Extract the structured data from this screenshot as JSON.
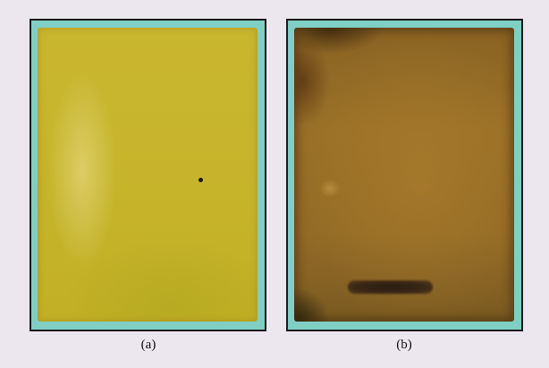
{
  "figure": {
    "panels": [
      {
        "label": "(a)",
        "plate_color": "#c8b52d",
        "border_color": "#7fcfc4",
        "features": [
          "small-black-dot"
        ]
      },
      {
        "label": "(b)",
        "plate_color": "#946b26",
        "border_color": "#7fcfc4",
        "features": [
          "dark-horizontal-band"
        ]
      }
    ],
    "background_color": "#ece6ee"
  }
}
